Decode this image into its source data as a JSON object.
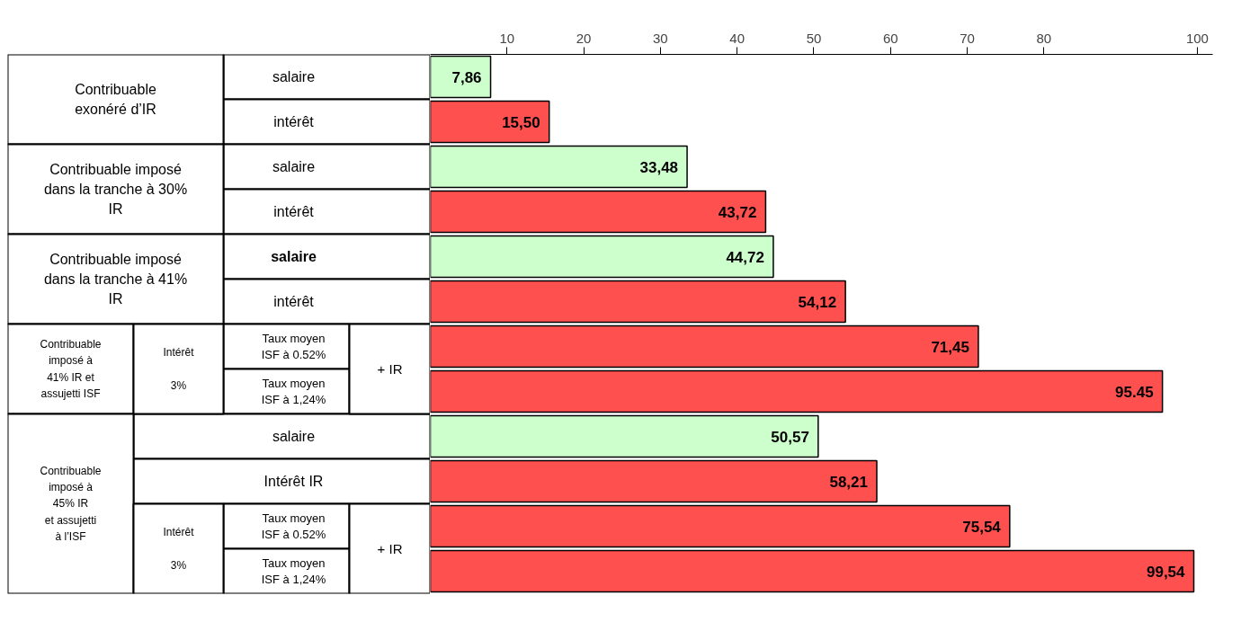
{
  "chart_data": {
    "type": "bar",
    "orientation": "horizontal",
    "categories": [
      "salaire",
      "intérêt",
      "salaire",
      "intérêt",
      "salaire",
      "intérêt",
      "Taux moyen\nISF à 0.52%",
      "Taux moyen\nISF à 1,24%",
      "salaire",
      "Intérêt IR",
      "Taux moyen\nISF à 0.52%",
      "Taux moyen\nISF à 1,24%"
    ],
    "values": [
      7.86,
      15.5,
      33.48,
      43.72,
      44.72,
      54.12,
      71.45,
      95.45,
      50.57,
      58.21,
      75.54,
      99.54
    ],
    "value_labels": [
      "7,86",
      "15,50",
      "33,48",
      "43,72",
      "44,72",
      "54,12",
      "71,45",
      "95.45",
      "50,57",
      "58,21",
      "75,54",
      "99,54"
    ],
    "colors": [
      "#ccffcc",
      "#ff5050",
      "#ccffcc",
      "#ff5050",
      "#ccffcc",
      "#ff5050",
      "#ff5050",
      "#ff5050",
      "#ccffcc",
      "#ff5050",
      "#ff5050",
      "#ff5050"
    ],
    "xlim": [
      0,
      102
    ],
    "xticks": [
      10,
      20,
      30,
      40,
      50,
      60,
      70,
      80,
      100
    ],
    "grid": false,
    "annotations": [
      "Contribuable\nexonéré d’IR",
      "Contribuable imposé\ndans la tranche à 30%\nIR",
      "Contribuable imposé\ndans la tranche à 41%\nIR",
      "Contribuable\nimposé à\n41% IR et\nassujetti ISF",
      "Intérêt\n\n3%",
      "+ IR",
      "Contribuable\nimposé à\n45% IR\net assujetti\nà l’ISF",
      "Intérêt\n\n3%",
      "+ IR"
    ]
  }
}
